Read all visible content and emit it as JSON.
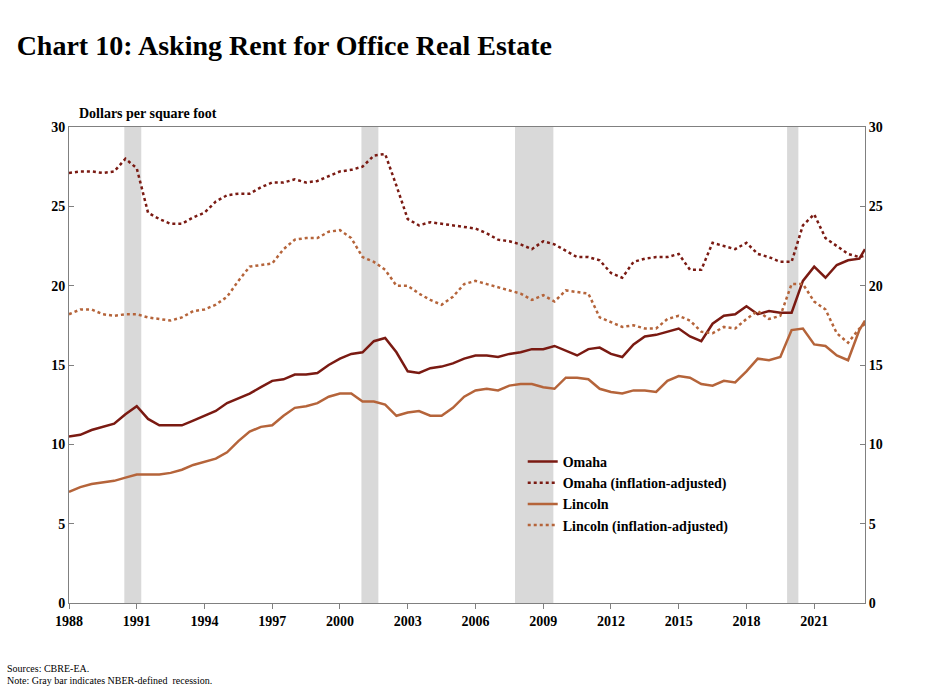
{
  "chart_data": {
    "type": "line",
    "title": "Chart 10: Asking Rent for Office Real Estate",
    "y_label": "Dollars per square foot",
    "notes": [
      "Sources: CBRE-EA.",
      "Note: Gray bar indicates NBER-defined  recession."
    ],
    "x": [
      1988,
      1988.5,
      1989,
      1989.5,
      1990,
      1990.5,
      1991,
      1991.5,
      1992,
      1992.5,
      1993,
      1993.5,
      1994,
      1994.5,
      1995,
      1995.5,
      1996,
      1996.5,
      1997,
      1997.5,
      1998,
      1998.5,
      1999,
      1999.5,
      2000,
      2000.5,
      2001,
      2001.5,
      2002,
      2002.5,
      2003,
      2003.5,
      2004,
      2004.5,
      2005,
      2005.5,
      2006,
      2006.5,
      2007,
      2007.5,
      2008,
      2008.5,
      2009,
      2009.5,
      2010,
      2010.5,
      2011,
      2011.5,
      2012,
      2012.5,
      2013,
      2013.5,
      2014,
      2014.5,
      2015,
      2015.5,
      2016,
      2016.5,
      2017,
      2017.5,
      2018,
      2018.5,
      2019,
      2019.5,
      2020,
      2020.5,
      2021,
      2021.5,
      2022,
      2022.5,
      2023,
      2023.25
    ],
    "series": [
      {
        "name": "Omaha",
        "color": "#7a1a12",
        "line_style": "solid",
        "values": [
          10.5,
          10.6,
          10.9,
          11.1,
          11.3,
          11.9,
          12.4,
          11.6,
          11.2,
          11.2,
          11.2,
          11.5,
          11.8,
          12.1,
          12.6,
          12.9,
          13.2,
          13.6,
          14.0,
          14.1,
          14.4,
          14.4,
          14.5,
          15.0,
          15.4,
          15.7,
          15.8,
          16.5,
          16.7,
          15.8,
          14.6,
          14.5,
          14.8,
          14.9,
          15.1,
          15.4,
          15.6,
          15.6,
          15.5,
          15.7,
          15.8,
          16.0,
          16.0,
          16.2,
          15.9,
          15.6,
          16.0,
          16.1,
          15.7,
          15.5,
          16.3,
          16.8,
          16.9,
          17.1,
          17.3,
          16.8,
          16.5,
          17.6,
          18.1,
          18.2,
          18.7,
          18.2,
          18.4,
          18.3,
          18.3,
          20.3,
          21.2,
          20.5,
          21.3,
          21.6,
          21.7,
          22.3
        ]
      },
      {
        "name": "Omaha (inflation-adjusted)",
        "color": "#7a1a12",
        "line_style": "dot",
        "values": [
          27.1,
          27.2,
          27.2,
          27.1,
          27.2,
          28.0,
          27.4,
          24.6,
          24.2,
          23.9,
          23.9,
          24.3,
          24.6,
          25.3,
          25.7,
          25.8,
          25.8,
          26.2,
          26.5,
          26.5,
          26.7,
          26.5,
          26.6,
          26.9,
          27.2,
          27.3,
          27.5,
          28.2,
          28.3,
          26.3,
          24.2,
          23.8,
          24.0,
          23.9,
          23.8,
          23.7,
          23.6,
          23.3,
          22.9,
          22.8,
          22.6,
          22.3,
          22.8,
          22.6,
          22.2,
          21.8,
          21.8,
          21.6,
          20.8,
          20.5,
          21.5,
          21.7,
          21.8,
          21.8,
          22.0,
          21.0,
          21.0,
          22.7,
          22.5,
          22.3,
          22.7,
          22.0,
          21.8,
          21.5,
          21.5,
          23.8,
          24.5,
          23.0,
          22.5,
          22.0,
          21.8,
          21.9
        ]
      },
      {
        "name": "Lincoln",
        "color": "#b5643a",
        "line_style": "solid",
        "values": [
          7.0,
          7.3,
          7.5,
          7.6,
          7.7,
          7.9,
          8.1,
          8.1,
          8.1,
          8.2,
          8.4,
          8.7,
          8.9,
          9.1,
          9.5,
          10.2,
          10.8,
          11.1,
          11.2,
          11.8,
          12.3,
          12.4,
          12.6,
          13.0,
          13.2,
          13.2,
          12.7,
          12.7,
          12.5,
          11.8,
          12.0,
          12.1,
          11.8,
          11.8,
          12.3,
          13.0,
          13.4,
          13.5,
          13.4,
          13.7,
          13.8,
          13.8,
          13.6,
          13.5,
          14.2,
          14.2,
          14.1,
          13.5,
          13.3,
          13.2,
          13.4,
          13.4,
          13.3,
          14.0,
          14.3,
          14.2,
          13.8,
          13.7,
          14.0,
          13.9,
          14.6,
          15.4,
          15.3,
          15.5,
          17.2,
          17.3,
          16.3,
          16.2,
          15.6,
          15.3,
          17.2,
          17.8
        ]
      },
      {
        "name": "Lincoln (inflation-adjusted)",
        "color": "#b5643a",
        "line_style": "dot",
        "values": [
          18.2,
          18.5,
          18.5,
          18.2,
          18.1,
          18.2,
          18.2,
          18.0,
          17.9,
          17.8,
          18.0,
          18.4,
          18.5,
          18.8,
          19.3,
          20.3,
          21.2,
          21.3,
          21.4,
          22.3,
          22.9,
          23.0,
          23.0,
          23.4,
          23.5,
          23.0,
          21.8,
          21.5,
          21.0,
          20.0,
          20.0,
          19.5,
          19.1,
          18.8,
          19.3,
          20.1,
          20.3,
          20.1,
          19.9,
          19.7,
          19.5,
          19.1,
          19.4,
          19.0,
          19.7,
          19.6,
          19.5,
          18.0,
          17.7,
          17.4,
          17.5,
          17.3,
          17.3,
          17.9,
          18.1,
          17.8,
          17.1,
          17.0,
          17.4,
          17.3,
          17.9,
          18.4,
          17.9,
          18.1,
          20.1,
          20.1,
          19.0,
          18.5,
          17.0,
          16.4,
          17.3,
          17.6
        ]
      }
    ],
    "recessions": [
      [
        1990.45,
        1991.2
      ],
      [
        2000.95,
        2001.7
      ],
      [
        2007.75,
        2009.45
      ],
      [
        2019.8,
        2020.3
      ]
    ],
    "xlim": [
      1988,
      2023.25
    ],
    "xticks": [
      1988,
      1991,
      1994,
      1997,
      2000,
      2003,
      2006,
      2009,
      2012,
      2015,
      2018,
      2021
    ],
    "ylim": [
      0,
      30
    ],
    "yticks": [
      0,
      5,
      10,
      15,
      20,
      25,
      30
    ],
    "y2lim": [
      0,
      30
    ],
    "y2ticks": [
      0,
      5,
      10,
      15,
      20,
      25,
      30
    ],
    "grid": false,
    "legend": "lower right"
  }
}
